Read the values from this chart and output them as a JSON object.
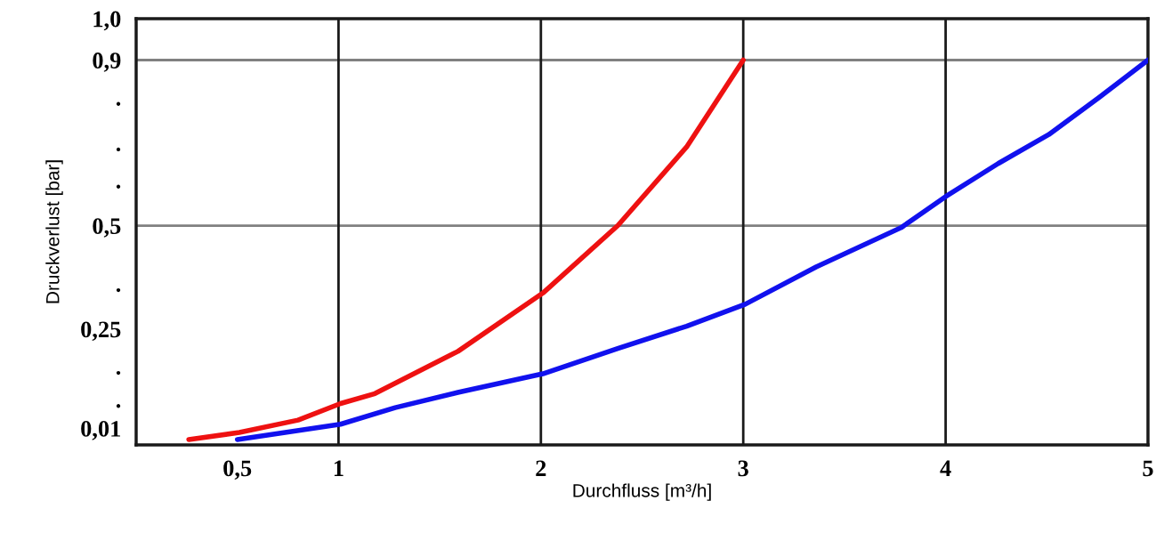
{
  "chart_data": {
    "type": "line",
    "xlabel": "Durchfluss [m³/h]",
    "ylabel": "Druckverlust [bar]",
    "xlim": [
      0,
      5
    ],
    "ylim": [
      -0.03,
      1.0
    ],
    "xticks": [
      {
        "value": 0.5,
        "label": "0,5"
      },
      1,
      2,
      3,
      4,
      5
    ],
    "yticks": [
      {
        "value": 0.01,
        "label": "0,01"
      },
      {
        "value": 0.08,
        "label": "."
      },
      {
        "value": 0.16,
        "label": "."
      },
      {
        "value": 0.25,
        "label": "0,25"
      },
      {
        "value": 0.36,
        "label": "."
      },
      {
        "value": 0.5,
        "label": "0,5"
      },
      {
        "value": 0.61,
        "label": "."
      },
      {
        "value": 0.7,
        "label": "."
      },
      {
        "value": 0.81,
        "label": "."
      },
      {
        "value": 0.9,
        "label": "0,9"
      },
      {
        "value": 1.0,
        "label": "1,0"
      }
    ],
    "grid": false,
    "marker": "none",
    "line_style": "solid",
    "ref_lines": [
      {
        "axis": "y",
        "value": 0.9,
        "color": "#808080"
      },
      {
        "axis": "y",
        "value": 0.5,
        "color": "#808080"
      },
      {
        "axis": "x",
        "value": 1,
        "color": "#1a1a1a"
      },
      {
        "axis": "x",
        "value": 2,
        "color": "#1a1a1a"
      },
      {
        "axis": "x",
        "value": 3,
        "color": "#1a1a1a"
      },
      {
        "axis": "x",
        "value": 4,
        "color": "#1a1a1a"
      }
    ],
    "series": [
      {
        "color": "#ee1111",
        "x": [
          0.26,
          0.51,
          0.8,
          1.01,
          1.18,
          1.59,
          2.01,
          2.38,
          2.72,
          3.0
        ],
        "values": [
          -0.017,
          0.0,
          0.03,
          0.07,
          0.094,
          0.196,
          0.337,
          0.5,
          0.69,
          0.9
        ]
      },
      {
        "color": "#1111ee",
        "x": [
          0.5,
          1.01,
          1.28,
          1.59,
          2.01,
          2.38,
          2.72,
          3.01,
          3.36,
          3.78,
          4.0,
          4.26,
          4.51,
          4.76,
          5.0
        ],
        "values": [
          -0.017,
          0.02,
          0.06,
          0.097,
          0.142,
          0.203,
          0.257,
          0.31,
          0.4,
          0.495,
          0.57,
          0.65,
          0.72,
          0.81,
          0.9
        ]
      }
    ]
  }
}
